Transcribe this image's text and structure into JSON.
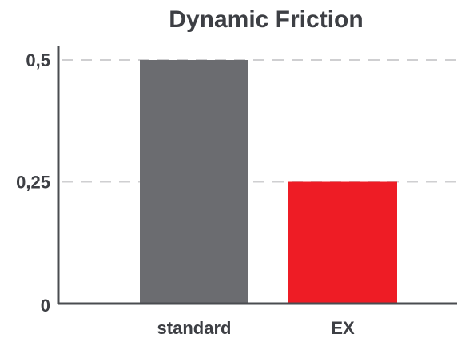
{
  "chart_data": {
    "type": "bar",
    "title": "Dynamic Friction",
    "categories": [
      "standard",
      "EX"
    ],
    "values": [
      0.5,
      0.25
    ],
    "colors": [
      "#6b6c70",
      "#ee1c25"
    ],
    "yticks": [
      0,
      0.25,
      0.5
    ],
    "ytick_labels": [
      "0",
      "0,25",
      "0,5"
    ],
    "ylim": [
      0,
      0.5
    ],
    "grid": true,
    "xlabel": "",
    "ylabel": ""
  }
}
